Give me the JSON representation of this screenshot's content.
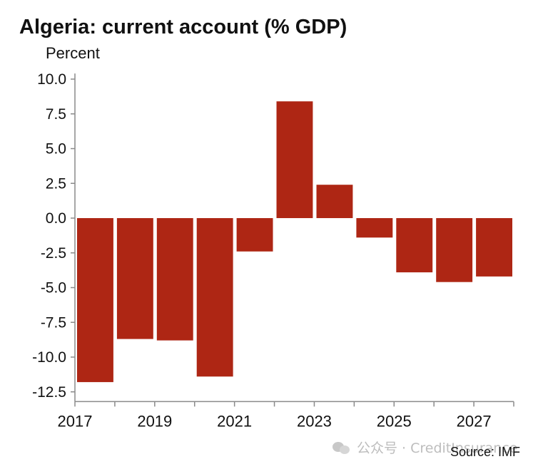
{
  "chart_data": {
    "type": "bar",
    "title": "Algeria: current account (% GDP)",
    "ylabel": "Percent",
    "xlabel": "",
    "categories": [
      "2017",
      "2018",
      "2019",
      "2020",
      "2021",
      "2022",
      "2023",
      "2024",
      "2025",
      "2026",
      "2027"
    ],
    "values": [
      -11.8,
      -8.7,
      -8.8,
      -11.4,
      -2.4,
      8.4,
      2.4,
      -1.4,
      -3.9,
      -4.6,
      -4.2
    ],
    "ylim": [
      -13.2,
      10.2
    ],
    "yticks": [
      "10.0",
      "7.5",
      "5.0",
      "2.5",
      "0.0",
      "-2.5",
      "-5.0",
      "-7.5",
      "-10.0",
      "-12.5"
    ],
    "ytick_values": [
      10,
      7.5,
      5,
      2.5,
      0,
      -2.5,
      -5,
      -7.5,
      -10,
      -12.5
    ],
    "xtick_labels": [
      "2017",
      "2019",
      "2021",
      "2023",
      "2025",
      "2027"
    ],
    "bar_color": "#ae2614",
    "grid": false,
    "legend": "none"
  },
  "source": "Source: IMF",
  "watermark": "公众号 · CreditInsurance"
}
